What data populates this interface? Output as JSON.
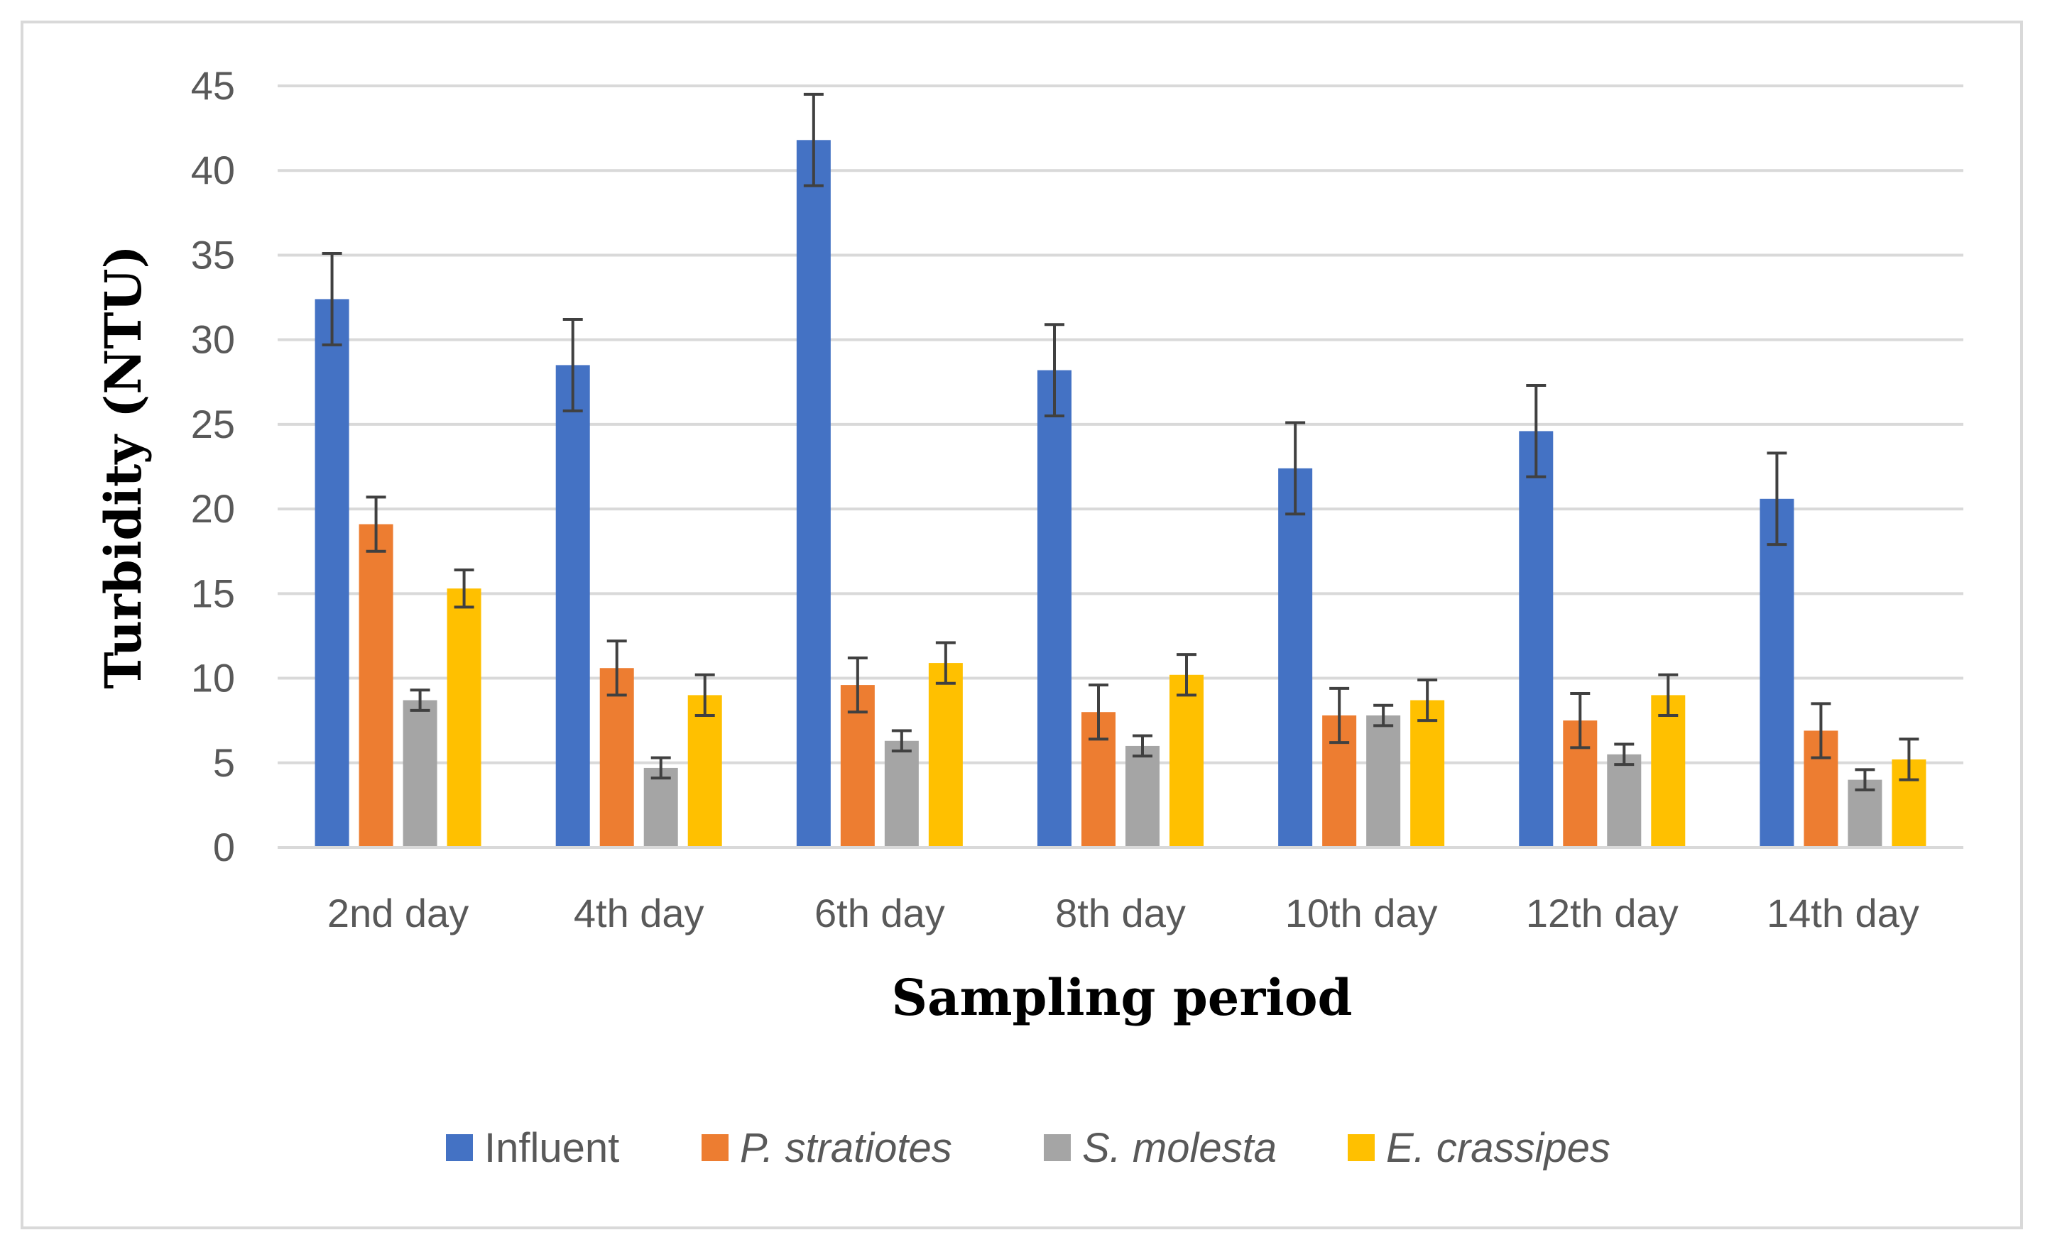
{
  "chart_data": {
    "type": "bar",
    "title": "",
    "xlabel": "Sampling period",
    "ylabel": "Turbidity (NTU)",
    "ylim": [
      0,
      45
    ],
    "yticks": [
      0,
      5,
      10,
      15,
      20,
      25,
      30,
      35,
      40,
      45
    ],
    "grid": true,
    "legend_position": "bottom",
    "categories": [
      "2nd day",
      "4th day",
      "6th day",
      "8th day",
      "10th day",
      "12th day",
      "14th day"
    ],
    "series": [
      {
        "name": "Influent",
        "italic": false,
        "color": "#4472C4",
        "values": [
          32.4,
          28.5,
          41.8,
          28.2,
          22.4,
          24.6,
          20.6
        ],
        "errors": [
          2.7,
          2.7,
          2.7,
          2.7,
          2.7,
          2.7,
          2.7
        ]
      },
      {
        "name": "P. stratiotes",
        "italic": true,
        "color": "#ED7D31",
        "values": [
          19.1,
          10.6,
          9.6,
          8.0,
          7.8,
          7.5,
          6.9
        ],
        "errors": [
          1.6,
          1.6,
          1.6,
          1.6,
          1.6,
          1.6,
          1.6
        ]
      },
      {
        "name": "S. molesta",
        "italic": true,
        "color": "#A5A5A5",
        "values": [
          8.7,
          4.7,
          6.3,
          6.0,
          7.8,
          5.5,
          4.0
        ],
        "errors": [
          0.6,
          0.6,
          0.6,
          0.6,
          0.6,
          0.6,
          0.6
        ]
      },
      {
        "name": "E. crassipes",
        "italic": true,
        "color": "#FFC000",
        "values": [
          15.3,
          9.0,
          10.9,
          10.2,
          8.7,
          9.0,
          5.2
        ],
        "errors": [
          1.1,
          1.2,
          1.2,
          1.2,
          1.2,
          1.2,
          1.2
        ]
      }
    ]
  }
}
